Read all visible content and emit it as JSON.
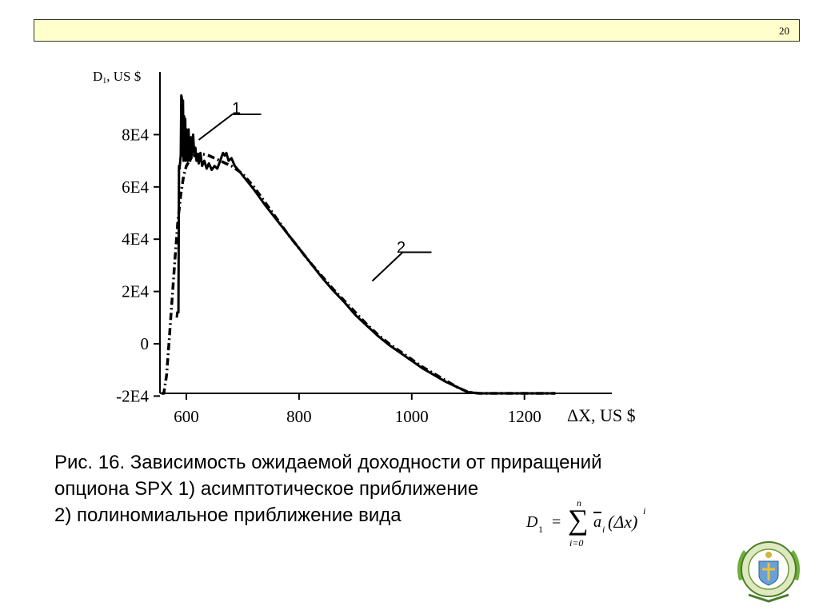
{
  "slide": {
    "number": "20"
  },
  "chart_data": {
    "type": "line",
    "ylabel": "D",
    "ylabel_sub": "1",
    "ylabel_unit": ", US $",
    "xlabel": "ΔX, US $",
    "xlim": [
      555,
      1250
    ],
    "ylim": [
      -20000,
      100000
    ],
    "x_ticks": [
      600,
      800,
      1000,
      1200
    ],
    "x_tick_labels": [
      "600",
      "800",
      "1000",
      "1200"
    ],
    "y_ticks": [
      -20000,
      0,
      20000,
      40000,
      60000,
      80000
    ],
    "y_tick_labels": [
      "-2E4",
      "0",
      "2E4",
      "4E4",
      "6E4",
      "8E4"
    ],
    "grid": false,
    "series": [
      {
        "name": "1",
        "style": "solid",
        "x": [
          583,
          584,
          586,
          587,
          588,
          590,
          591,
          592,
          593,
          594,
          595,
          596,
          597,
          598,
          599,
          600,
          601,
          602,
          603,
          604,
          605,
          606,
          607,
          608,
          609,
          610,
          612,
          614,
          616,
          618,
          620,
          622,
          625,
          628,
          632,
          636,
          640,
          645,
          650,
          655,
          660,
          665,
          668,
          671,
          675,
          680,
          686,
          694,
          705,
          720,
          740,
          760,
          780,
          800,
          820,
          840,
          860,
          880,
          900,
          920,
          940,
          960,
          980,
          1000,
          1020,
          1040,
          1060,
          1080,
          1100,
          1120,
          1140,
          1160,
          1180,
          1200,
          1220,
          1240,
          1255
        ],
        "y": [
          10000,
          12000,
          12000,
          68000,
          67000,
          72000,
          95000,
          94000,
          72000,
          93000,
          70000,
          87000,
          72000,
          86000,
          70000,
          82000,
          73000,
          79000,
          70000,
          82000,
          73000,
          77000,
          70000,
          79000,
          71000,
          76000,
          80000,
          72000,
          75000,
          70000,
          72000,
          69000,
          73000,
          68000,
          70000,
          67000,
          69000,
          66500,
          68000,
          67000,
          70000,
          73000,
          72000,
          73000,
          70000,
          71000,
          68000,
          66000,
          63000,
          59000,
          53000,
          47500,
          42000,
          36500,
          31000,
          25500,
          20500,
          16000,
          11000,
          7000,
          3000,
          -500,
          -3500,
          -6500,
          -9500,
          -12000,
          -14500,
          -16500,
          -18500,
          -20500,
          -22500,
          -24000,
          -25500,
          -27000,
          -28500,
          -29500,
          -30500
        ]
      },
      {
        "name": "2",
        "style": "dashdot",
        "x": [
          556,
          560,
          565,
          570,
          575,
          580,
          585,
          590,
          595,
          600,
          610,
          620,
          630,
          640,
          650,
          660,
          670,
          680,
          690,
          700,
          720,
          740,
          760,
          780,
          800,
          820,
          840,
          860,
          880,
          900,
          920,
          940,
          960,
          980,
          1000,
          1020,
          1040,
          1060,
          1080,
          1100,
          1120,
          1140,
          1160,
          1180,
          1200,
          1220,
          1240,
          1255
        ],
        "y": [
          -36000,
          -26000,
          -12000,
          3000,
          18000,
          33000,
          47000,
          57000,
          64000,
          68000,
          71500,
          72500,
          72500,
          72000,
          71000,
          70000,
          69000,
          68000,
          66500,
          65000,
          60000,
          54000,
          48000,
          42000,
          36500,
          31000,
          26000,
          21000,
          16500,
          12000,
          7500,
          3500,
          0,
          -3000,
          -6000,
          -9000,
          -11500,
          -14000,
          -16500,
          -18500,
          -20500,
          -22000,
          -23500,
          -25000,
          -26500,
          -28000,
          -29500,
          -30500
        ]
      }
    ],
    "annotations": [
      {
        "label": "1",
        "points_to_x": 622,
        "points_to_y": 78000
      },
      {
        "label": "2",
        "points_to_x": 930,
        "points_to_y": 24000
      }
    ]
  },
  "caption": {
    "line1": "Рис. 16. Зависимость ожидаемой доходности от приращений",
    "line2": "опциона SPX 1) асимптотическое приближение",
    "line3": "2) полиномиальное приближение вида"
  },
  "formula": {
    "lhs": "D",
    "lhs_sub": "1",
    "equals": "=",
    "sum_upper": "n",
    "sum_symbol": "∑",
    "sum_lower": "i=0",
    "coef": "a",
    "coef_sub": "i",
    "argument": "(Δx)",
    "power": "i"
  },
  "logo": {
    "icon": "university-emblem-icon"
  }
}
